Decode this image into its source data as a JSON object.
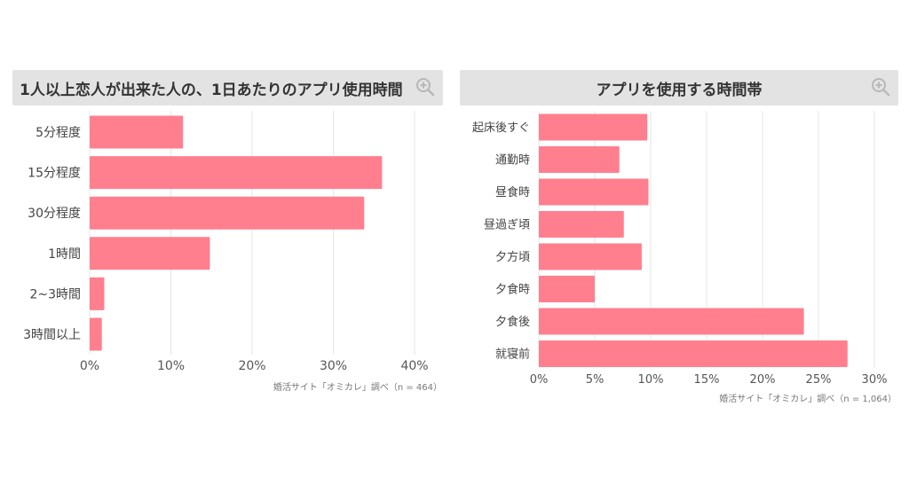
{
  "colors": {
    "bar": "#ff7f8e",
    "title_bg": "#e3e3e3",
    "grid": "#e6e6e6",
    "text": "#444444"
  },
  "left": {
    "title": "1人以上恋人が出来た人の、1日あたりのアプリ使用時間",
    "zoom_icon": "zoom-in-icon",
    "source": "婚活サイト「オミカレ」調べ（n = 464）"
  },
  "right": {
    "title": "アプリを使用する時間帯",
    "zoom_icon": "zoom-in-icon",
    "source": "婚活サイト「オミカレ」調べ（n = 1,064）"
  },
  "chart_data": [
    {
      "type": "bar",
      "orientation": "horizontal",
      "title": "1人以上恋人が出来た人の、1日あたりのアプリ使用時間",
      "categories": [
        "5分程度",
        "15分程度",
        "30分程度",
        "1時間",
        "2~3時間",
        "3時間以上"
      ],
      "values": [
        11.5,
        36,
        33.8,
        14.8,
        1.8,
        1.5
      ],
      "xlim": [
        0,
        40
      ],
      "xticks": [
        "0%",
        "10%",
        "20%",
        "30%",
        "40%"
      ],
      "grid": true
    },
    {
      "type": "bar",
      "orientation": "horizontal",
      "title": "アプリを使用する時間帯",
      "categories": [
        "起床後すぐ",
        "通勤時",
        "昼食時",
        "昼過ぎ頃",
        "夕方頃",
        "夕食時",
        "夕食後",
        "就寝前"
      ],
      "values": [
        9.7,
        7.2,
        9.8,
        7.6,
        9.2,
        5,
        23.7,
        27.6
      ],
      "xlim": [
        0,
        30
      ],
      "xticks": [
        "0%",
        "5%",
        "10%",
        "15%",
        "20%",
        "25%",
        "30%"
      ],
      "grid": true
    }
  ]
}
